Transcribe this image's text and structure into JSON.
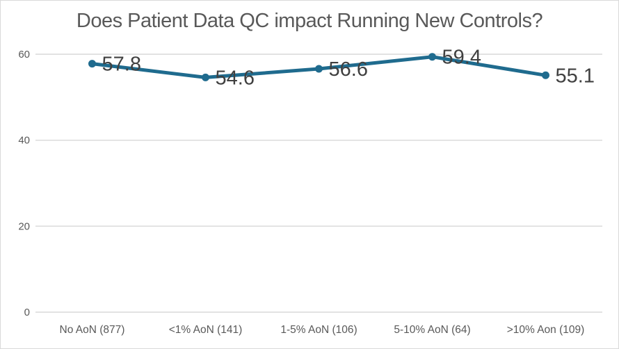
{
  "chart_data": {
    "type": "line",
    "title": "Does Patient Data QC impact Running New Controls?",
    "categories": [
      "No AoN (877)",
      "<1% AoN (141)",
      "1-5% AoN (106)",
      "5-10% AoN (64)",
      ">10% Aon (109)"
    ],
    "values": [
      57.8,
      54.6,
      56.6,
      59.4,
      55.1
    ],
    "data_labels": [
      "57.8",
      "54.6",
      "56.6",
      "59.4",
      "55.1"
    ],
    "xlabel": "",
    "ylabel": "",
    "ylim": [
      0,
      60
    ],
    "yticks": [
      0,
      20,
      40,
      60
    ],
    "grid": "horizontal",
    "legend": "none",
    "colors": {
      "line": "#1f6b8e",
      "marker": "#1f6b8e",
      "gridline": "#d9d9d9",
      "axis_text": "#595959",
      "title_text": "#595959",
      "data_label_text": "#404040",
      "border": "#d9d9d9",
      "background": "#ffffff"
    }
  }
}
